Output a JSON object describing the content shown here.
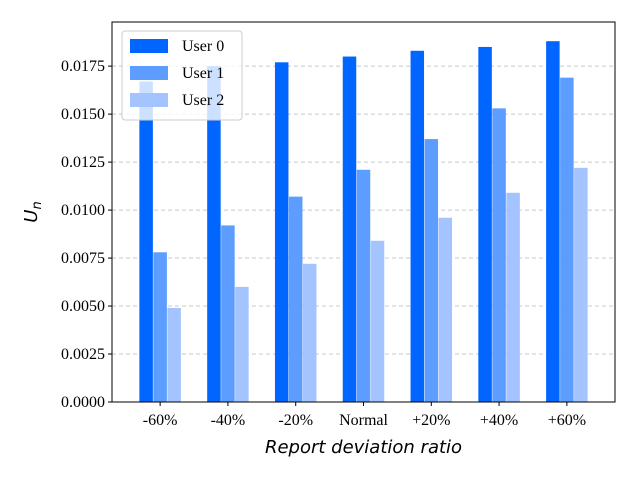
{
  "chart_data": {
    "type": "bar",
    "xlabel": "Report deviation ratio",
    "ylabel_main": "U",
    "ylabel_sub": "n",
    "categories": [
      "-60%",
      "-40%",
      "-20%",
      "Normal",
      "+20%",
      "+40%",
      "+60%"
    ],
    "series": [
      {
        "name": "User 0",
        "color": "#0066ff",
        "values": [
          0.0167,
          0.0175,
          0.0177,
          0.018,
          0.0183,
          0.0185,
          0.0188
        ]
      },
      {
        "name": "User 1",
        "color": "#5c9dff",
        "values": [
          0.0078,
          0.0092,
          0.0107,
          0.0121,
          0.0137,
          0.0153,
          0.0169
        ]
      },
      {
        "name": "User 2",
        "color": "#a3c4ff",
        "values": [
          0.0049,
          0.006,
          0.0072,
          0.0084,
          0.0096,
          0.0109,
          0.0122
        ]
      }
    ],
    "ylim": [
      0,
      0.0198
    ],
    "yticks": [
      "0.0000",
      "0.0025",
      "0.0050",
      "0.0075",
      "0.0100",
      "0.0125",
      "0.0150",
      "0.0175"
    ],
    "grid": "horizontal dashed",
    "legend_position": "top-left"
  }
}
